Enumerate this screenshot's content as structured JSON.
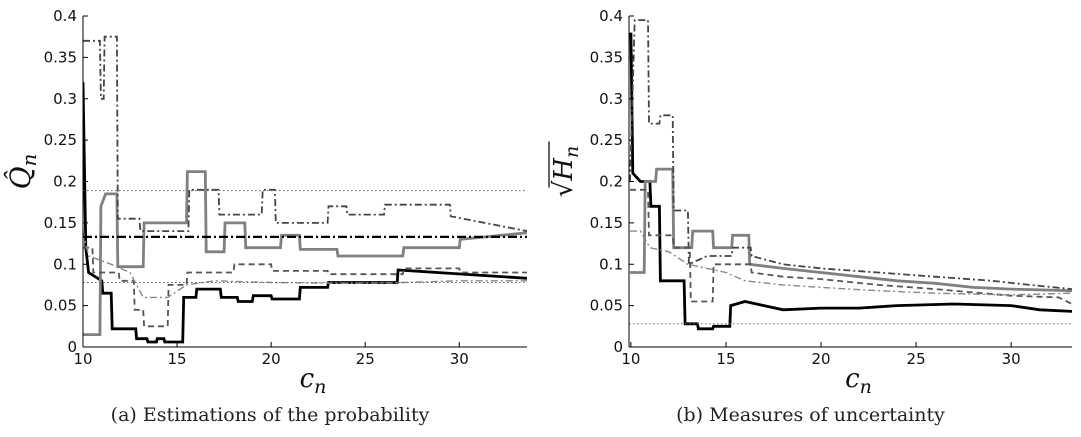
{
  "chart_data": [
    {
      "type": "line",
      "caption": "(a) Estimations of the probability",
      "xlabel": "c_n",
      "ylabel": "Q̂_n",
      "xlim": [
        10,
        33.6
      ],
      "ylim": [
        0,
        0.4
      ],
      "xticks": [
        10,
        15,
        20,
        25,
        30
      ],
      "yticks": [
        0,
        0.05,
        0.1,
        0.15,
        0.2,
        0.25,
        0.3,
        0.35,
        0.4
      ],
      "grid": false,
      "series": [
        {
          "color": "#000000",
          "width": 2.8,
          "dash": "",
          "points": [
            [
              10,
              0.32
            ],
            [
              10.15,
              0.12
            ],
            [
              10.3,
              0.09
            ],
            [
              11,
              0.08
            ],
            [
              11.05,
              0.065
            ],
            [
              11.5,
              0.065
            ],
            [
              11.55,
              0.022
            ],
            [
              12.8,
              0.022
            ],
            [
              12.85,
              0.01
            ],
            [
              13.4,
              0.01
            ],
            [
              13.45,
              0.006
            ],
            [
              13.9,
              0.006
            ],
            [
              13.95,
              0.01
            ],
            [
              14.3,
              0.01
            ],
            [
              14.35,
              0.006
            ],
            [
              15.3,
              0.006
            ],
            [
              15.35,
              0.06
            ],
            [
              16,
              0.06
            ],
            [
              16.05,
              0.07
            ],
            [
              17.3,
              0.07
            ],
            [
              17.35,
              0.06
            ],
            [
              18.2,
              0.06
            ],
            [
              18.25,
              0.055
            ],
            [
              19,
              0.055
            ],
            [
              19.05,
              0.062
            ],
            [
              20,
              0.062
            ],
            [
              20.05,
              0.058
            ],
            [
              21.5,
              0.058
            ],
            [
              21.55,
              0.072
            ],
            [
              23,
              0.072
            ],
            [
              23.05,
              0.078
            ],
            [
              26.7,
              0.078
            ],
            [
              26.75,
              0.093
            ],
            [
              33.6,
              0.083
            ]
          ]
        },
        {
          "color": "#808080",
          "width": 2.8,
          "dash": "",
          "points": [
            [
              10,
              0.015
            ],
            [
              10.9,
              0.015
            ],
            [
              10.95,
              0.17
            ],
            [
              11.2,
              0.185
            ],
            [
              11.8,
              0.185
            ],
            [
              11.85,
              0.097
            ],
            [
              13.2,
              0.097
            ],
            [
              13.25,
              0.15
            ],
            [
              15.5,
              0.15
            ],
            [
              15.55,
              0.212
            ],
            [
              16.5,
              0.212
            ],
            [
              16.55,
              0.115
            ],
            [
              17.5,
              0.115
            ],
            [
              17.55,
              0.15
            ],
            [
              18.6,
              0.15
            ],
            [
              18.65,
              0.12
            ],
            [
              20.5,
              0.12
            ],
            [
              20.55,
              0.135
            ],
            [
              21.5,
              0.135
            ],
            [
              21.55,
              0.118
            ],
            [
              23.5,
              0.118
            ],
            [
              23.55,
              0.11
            ],
            [
              27,
              0.11
            ],
            [
              27.05,
              0.12
            ],
            [
              30,
              0.12
            ],
            [
              30.05,
              0.13
            ],
            [
              33.6,
              0.138
            ]
          ]
        },
        {
          "color": "#444444",
          "width": 1.8,
          "dash": "7 3 2 3",
          "points": [
            [
              10,
              0.37
            ],
            [
              10.9,
              0.37
            ],
            [
              10.95,
              0.3
            ],
            [
              11.1,
              0.3
            ],
            [
              11.15,
              0.375
            ],
            [
              11.8,
              0.375
            ],
            [
              11.85,
              0.155
            ],
            [
              13,
              0.155
            ],
            [
              13.05,
              0.14
            ],
            [
              15.6,
              0.14
            ],
            [
              15.65,
              0.19
            ],
            [
              17.2,
              0.19
            ],
            [
              17.25,
              0.16
            ],
            [
              19.5,
              0.16
            ],
            [
              19.55,
              0.19
            ],
            [
              20.2,
              0.19
            ],
            [
              20.25,
              0.15
            ],
            [
              23,
              0.15
            ],
            [
              23.05,
              0.17
            ],
            [
              24,
              0.17
            ],
            [
              24.05,
              0.16
            ],
            [
              26,
              0.16
            ],
            [
              26.05,
              0.172
            ],
            [
              29.5,
              0.172
            ],
            [
              29.55,
              0.158
            ],
            [
              33.6,
              0.14
            ]
          ]
        },
        {
          "color": "#555555",
          "width": 1.8,
          "dash": "6 4",
          "points": [
            [
              10,
              0.12
            ],
            [
              10.5,
              0.12
            ],
            [
              10.55,
              0.09
            ],
            [
              11.9,
              0.09
            ],
            [
              11.95,
              0.08
            ],
            [
              12.7,
              0.08
            ],
            [
              12.75,
              0.045
            ],
            [
              13.2,
              0.045
            ],
            [
              13.25,
              0.025
            ],
            [
              14.5,
              0.025
            ],
            [
              14.55,
              0.075
            ],
            [
              15.5,
              0.075
            ],
            [
              15.55,
              0.09
            ],
            [
              18,
              0.09
            ],
            [
              18.05,
              0.1
            ],
            [
              20,
              0.1
            ],
            [
              20.05,
              0.092
            ],
            [
              23,
              0.092
            ],
            [
              23.05,
              0.088
            ],
            [
              27,
              0.088
            ],
            [
              27.05,
              0.095
            ],
            [
              30,
              0.095
            ],
            [
              30.05,
              0.09
            ],
            [
              33.6,
              0.09
            ]
          ]
        },
        {
          "color": "#888888",
          "width": 1.4,
          "dash": "7 3 2 3",
          "points": [
            [
              10,
              0.14
            ],
            [
              10.3,
              0.11
            ],
            [
              11.5,
              0.1
            ],
            [
              12.5,
              0.09
            ],
            [
              13.2,
              0.06
            ],
            [
              14.5,
              0.06
            ],
            [
              15.5,
              0.075
            ],
            [
              17,
              0.08
            ],
            [
              20,
              0.078
            ],
            [
              24,
              0.077
            ],
            [
              27,
              0.078
            ],
            [
              30,
              0.08
            ],
            [
              33.6,
              0.08
            ]
          ]
        },
        {
          "color": "#000000",
          "width": 2.2,
          "dash": "9 3 2 3",
          "points": [
            [
              10,
              0.133
            ],
            [
              33.6,
              0.133
            ]
          ]
        },
        {
          "color": "#666666",
          "width": 1,
          "dash": "1.5 2.5",
          "points": [
            [
              10,
              0.189
            ],
            [
              33.6,
              0.189
            ]
          ]
        },
        {
          "color": "#666666",
          "width": 1,
          "dash": "1.5 2.5",
          "points": [
            [
              10,
              0.078
            ],
            [
              33.6,
              0.078
            ]
          ]
        }
      ]
    },
    {
      "type": "line",
      "caption": "(b) Measures of uncertainty",
      "xlabel": "c_n",
      "ylabel": "√H_n",
      "xlim": [
        9.9,
        33.2
      ],
      "ylim": [
        0,
        0.4
      ],
      "xticks": [
        10,
        15,
        20,
        25,
        30
      ],
      "yticks": [
        0,
        0.05,
        0.1,
        0.15,
        0.2,
        0.25,
        0.3,
        0.35,
        0.4
      ],
      "grid": false,
      "series": [
        {
          "color": "#000000",
          "width": 2.8,
          "dash": "",
          "points": [
            [
              10,
              0.38
            ],
            [
              10.1,
              0.21
            ],
            [
              10.5,
              0.2
            ],
            [
              11,
              0.2
            ],
            [
              11.05,
              0.17
            ],
            [
              11.5,
              0.17
            ],
            [
              11.55,
              0.08
            ],
            [
              12.8,
              0.08
            ],
            [
              12.85,
              0.028
            ],
            [
              13.5,
              0.028
            ],
            [
              13.55,
              0.022
            ],
            [
              14.3,
              0.022
            ],
            [
              14.35,
              0.025
            ],
            [
              15.2,
              0.025
            ],
            [
              15.25,
              0.05
            ],
            [
              16,
              0.055
            ],
            [
              17,
              0.05
            ],
            [
              18,
              0.045
            ],
            [
              20,
              0.047
            ],
            [
              22,
              0.047
            ],
            [
              24,
              0.05
            ],
            [
              27,
              0.052
            ],
            [
              30,
              0.05
            ],
            [
              31.5,
              0.045
            ],
            [
              33.2,
              0.043
            ]
          ]
        },
        {
          "color": "#808080",
          "width": 2.8,
          "dash": "",
          "points": [
            [
              9.95,
              0.09
            ],
            [
              10.7,
              0.09
            ],
            [
              10.75,
              0.2
            ],
            [
              11.3,
              0.2
            ],
            [
              11.35,
              0.215
            ],
            [
              12.2,
              0.215
            ],
            [
              12.25,
              0.12
            ],
            [
              13.2,
              0.12
            ],
            [
              13.25,
              0.14
            ],
            [
              14.3,
              0.14
            ],
            [
              14.35,
              0.12
            ],
            [
              15.3,
              0.12
            ],
            [
              15.35,
              0.135
            ],
            [
              16.2,
              0.135
            ],
            [
              16.25,
              0.1
            ],
            [
              18,
              0.095
            ],
            [
              20,
              0.09
            ],
            [
              22,
              0.085
            ],
            [
              24,
              0.08
            ],
            [
              26,
              0.077
            ],
            [
              28,
              0.072
            ],
            [
              30,
              0.07
            ],
            [
              33.2,
              0.068
            ]
          ]
        },
        {
          "color": "#444444",
          "width": 1.8,
          "dash": "7 3 2 3",
          "points": [
            [
              9.95,
              0.2
            ],
            [
              10.2,
              0.395
            ],
            [
              10.9,
              0.395
            ],
            [
              10.95,
              0.27
            ],
            [
              11.5,
              0.27
            ],
            [
              11.55,
              0.28
            ],
            [
              12.2,
              0.28
            ],
            [
              12.25,
              0.165
            ],
            [
              13,
              0.165
            ],
            [
              13.05,
              0.1
            ],
            [
              14,
              0.11
            ],
            [
              15.3,
              0.11
            ],
            [
              15.35,
              0.12
            ],
            [
              16.3,
              0.12
            ],
            [
              16.35,
              0.11
            ],
            [
              18,
              0.1
            ],
            [
              20,
              0.095
            ],
            [
              23,
              0.09
            ],
            [
              26,
              0.085
            ],
            [
              29,
              0.08
            ],
            [
              31,
              0.075
            ],
            [
              33.2,
              0.07
            ]
          ]
        },
        {
          "color": "#555555",
          "width": 1.8,
          "dash": "6 4",
          "points": [
            [
              9.95,
              0.19
            ],
            [
              10.9,
              0.19
            ],
            [
              10.95,
              0.135
            ],
            [
              12.2,
              0.135
            ],
            [
              12.25,
              0.12
            ],
            [
              13.1,
              0.12
            ],
            [
              13.15,
              0.055
            ],
            [
              14.3,
              0.055
            ],
            [
              14.35,
              0.1
            ],
            [
              16.3,
              0.1
            ],
            [
              16.35,
              0.09
            ],
            [
              18,
              0.085
            ],
            [
              20,
              0.082
            ],
            [
              23,
              0.075
            ],
            [
              26,
              0.07
            ],
            [
              30,
              0.062
            ],
            [
              32.5,
              0.06
            ],
            [
              33.2,
              0.052
            ]
          ]
        },
        {
          "color": "#888888",
          "width": 1.4,
          "dash": "7 3 2 3",
          "points": [
            [
              9.95,
              0.14
            ],
            [
              10.5,
              0.14
            ],
            [
              11,
              0.12
            ],
            [
              12,
              0.115
            ],
            [
              13,
              0.1
            ],
            [
              14,
              0.095
            ],
            [
              15,
              0.09
            ],
            [
              16,
              0.08
            ],
            [
              18,
              0.075
            ],
            [
              20,
              0.072
            ],
            [
              23,
              0.068
            ],
            [
              26,
              0.065
            ],
            [
              30,
              0.063
            ],
            [
              33.2,
              0.065
            ]
          ]
        },
        {
          "color": "#666666",
          "width": 1,
          "dash": "1.5 2.5",
          "points": [
            [
              9.9,
              0.028
            ],
            [
              33.2,
              0.028
            ]
          ]
        }
      ]
    }
  ]
}
